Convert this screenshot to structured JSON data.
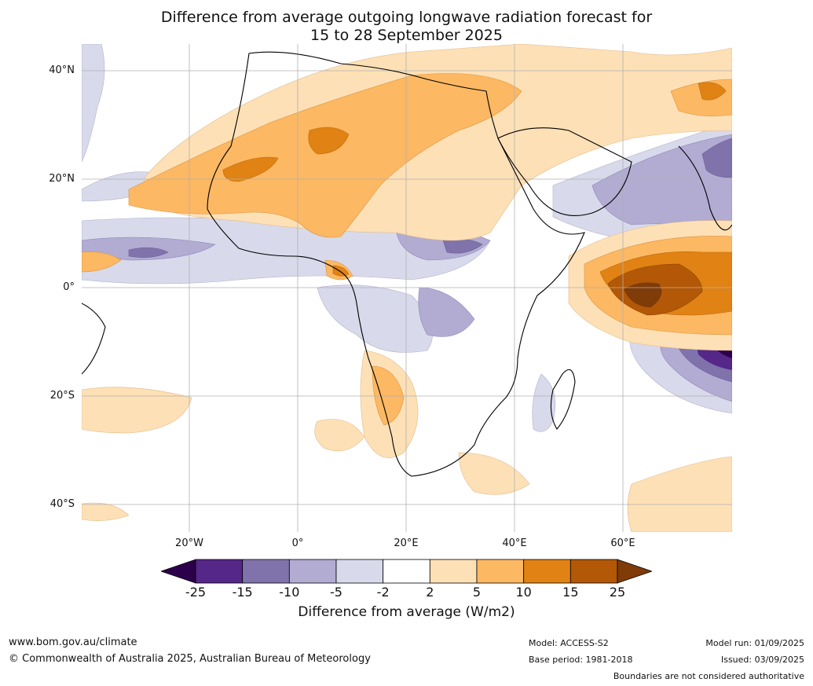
{
  "title_line1": "Difference from average outgoing longwave radiation forecast for",
  "title_line2": "15 to 28 September 2025",
  "lat_labels": [
    "40°N",
    "20°N",
    "0°",
    "20°S",
    "40°S"
  ],
  "lon_labels": [
    "20°W",
    "0°",
    "20°E",
    "40°E",
    "60°E"
  ],
  "colorbar": {
    "title": "Difference from average (W/m2)",
    "ticks": [
      "-25",
      "-15",
      "-10",
      "-5",
      "-2",
      "2",
      "5",
      "10",
      "15",
      "25"
    ],
    "colors": [
      "#2d004b",
      "#542788",
      "#8073ac",
      "#b2abd2",
      "#d8daeb",
      "#ffffff",
      "#fee0b6",
      "#fdb863",
      "#e08214",
      "#b35806",
      "#7f3b08"
    ]
  },
  "footer": {
    "url": "www.bom.gov.au/climate",
    "copyright": "© Commonwealth of Australia 2025, Australian Bureau of Meteorology",
    "model": "Model: ACCESS-S2",
    "base_period": "Base period: 1981-2018",
    "model_run": "Model run: 01/09/2025",
    "issued": "Issued: 03/09/2025",
    "disclaimer": "Boundaries are not considered authoritative"
  }
}
